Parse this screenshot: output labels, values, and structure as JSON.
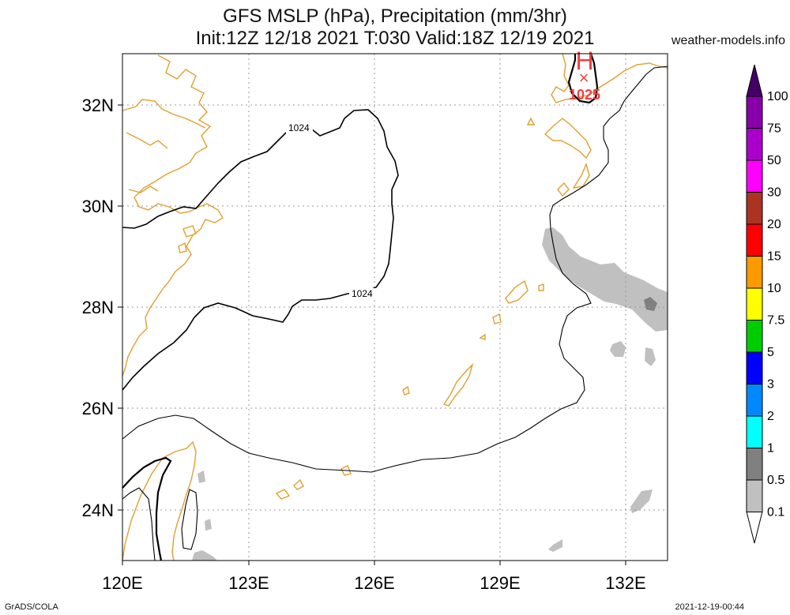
{
  "title": {
    "line1": "GFS MSLP (hPa), Precipitation (mm/3hr)",
    "line2": "Init:12Z 12/18 2021 T:030 Valid:18Z 12/19 2021"
  },
  "credit": "weather-models.info",
  "footer": {
    "left": "GrADS/COLA",
    "right": "2021-12-19-00:44"
  },
  "map": {
    "lon_labels": [
      "120E",
      "123E",
      "126E",
      "129E",
      "132E"
    ],
    "lat_labels": [
      "32N",
      "30N",
      "28N",
      "26N",
      "24N"
    ],
    "isobar_labels": [
      "1024",
      "1024"
    ],
    "pressure_center": {
      "symbol": "H",
      "marker": "×",
      "value": "1025",
      "color": "#ee4040"
    },
    "coast_color": "#e0a030",
    "precip_light_color": "#c0c0c0",
    "precip_medium_color": "#808080"
  },
  "legend": {
    "labels": [
      "100",
      "75",
      "50",
      "30",
      "20",
      "15",
      "10",
      "7.5",
      "5",
      "3",
      "2",
      "1",
      "0.5",
      "0.1"
    ],
    "colors": [
      "#8800aa",
      "#aa00cc",
      "#ff00ff",
      "#aa3322",
      "#ff0000",
      "#ff9900",
      "#ffff00",
      "#00cc00",
      "#0000ff",
      "#0088ff",
      "#00ffff",
      "#808080",
      "#c0c0c0"
    ],
    "top_arrow_color": "#440066"
  }
}
